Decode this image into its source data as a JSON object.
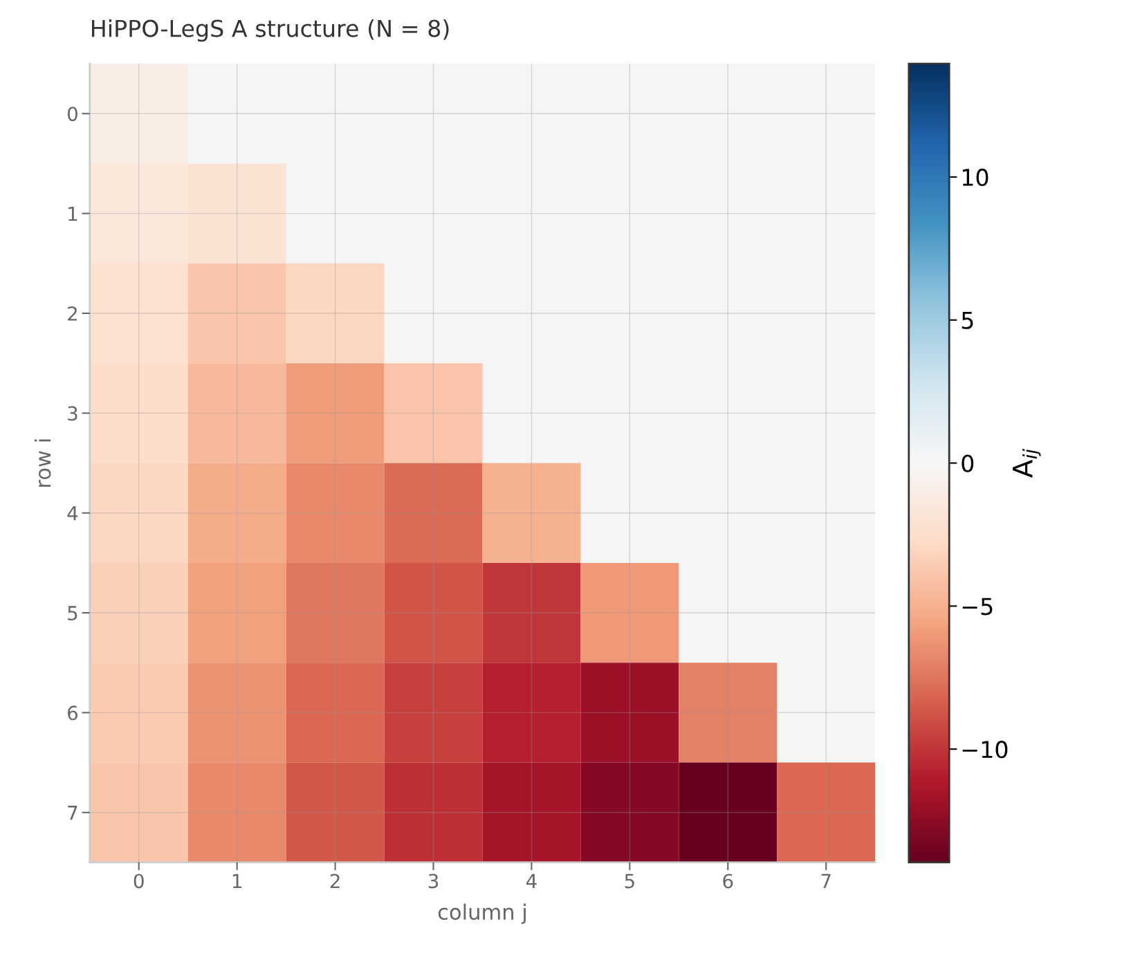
{
  "chart_data": {
    "type": "heatmap",
    "title": "HiPPO-LegS A structure (N = 8)",
    "xlabel": "column j",
    "ylabel": "row i",
    "clabel": "A$_{ij}$",
    "categories": [
      "0",
      "1",
      "2",
      "3",
      "4",
      "5",
      "6",
      "7"
    ],
    "y_categories": [
      "0",
      "1",
      "2",
      "3",
      "4",
      "5",
      "6",
      "7"
    ],
    "cells": [
      [
        -1,
        null,
        null,
        null,
        null,
        null,
        null,
        null
      ],
      [
        -1.73,
        -2,
        null,
        null,
        null,
        null,
        null,
        null
      ],
      [
        -2.24,
        -3.87,
        -3,
        null,
        null,
        null,
        null,
        null
      ],
      [
        -2.65,
        -4.58,
        -5.92,
        -4,
        null,
        null,
        null,
        null
      ],
      [
        -3,
        -5.2,
        -6.71,
        -7.94,
        -5,
        null,
        null,
        null
      ],
      [
        -3.32,
        -5.74,
        -7.42,
        -8.77,
        -9.95,
        -6,
        null,
        null
      ],
      [
        -3.61,
        -6.24,
        -8.06,
        -9.54,
        -10.82,
        -11.96,
        -7,
        null
      ],
      [
        -3.87,
        -6.71,
        -8.66,
        -10.25,
        -11.62,
        -12.85,
        -13.96,
        -8
      ]
    ],
    "clim": [
      -13.96,
      13.96
    ],
    "cticks": [
      {
        "value": -10,
        "label": "−10"
      },
      {
        "value": -5,
        "label": "−5"
      },
      0,
      5,
      10
    ],
    "grid": true
  }
}
